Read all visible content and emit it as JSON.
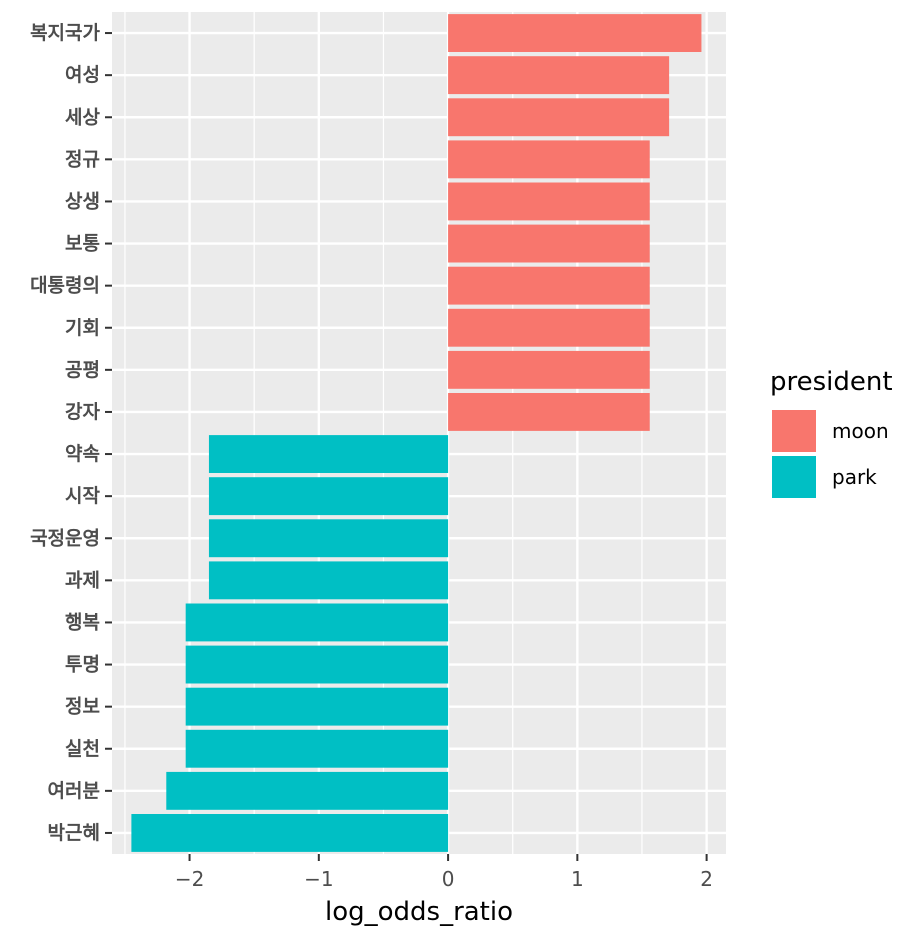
{
  "chart_data": {
    "type": "bar",
    "orientation": "horizontal",
    "title": "",
    "xlabel": "log_odds_ratio",
    "ylabel": "",
    "xlim": [
      -2.6,
      2.15
    ],
    "x_ticks": [
      -2,
      -1,
      0,
      1,
      2
    ],
    "x_tick_labels": [
      "−2",
      "−1",
      "0",
      "1",
      "2"
    ],
    "grid": true,
    "legend": {
      "title": "president",
      "position": "right",
      "entries": [
        {
          "name": "moon",
          "color": "#F8766D"
        },
        {
          "name": "park",
          "color": "#00BFC4"
        }
      ]
    },
    "categories": [
      "복지국가",
      "여성",
      "세상",
      "정규",
      "상생",
      "보통",
      "대통령의",
      "기회",
      "공평",
      "강자",
      "약속",
      "시작",
      "국정운영",
      "과제",
      "행복",
      "투명",
      "정보",
      "실천",
      "여러분",
      "박근혜"
    ],
    "values": [
      1.96,
      1.71,
      1.71,
      1.56,
      1.56,
      1.56,
      1.56,
      1.56,
      1.56,
      1.56,
      -1.85,
      -1.85,
      -1.85,
      -1.85,
      -2.03,
      -2.03,
      -2.03,
      -2.03,
      -2.18,
      -2.45
    ],
    "groups": [
      "moon",
      "moon",
      "moon",
      "moon",
      "moon",
      "moon",
      "moon",
      "moon",
      "moon",
      "moon",
      "park",
      "park",
      "park",
      "park",
      "park",
      "park",
      "park",
      "park",
      "park",
      "park"
    ],
    "colors": {
      "moon": "#F8766D",
      "park": "#00BFC4",
      "panel_background": "#EBEBEB",
      "grid": "#FFFFFF"
    }
  }
}
